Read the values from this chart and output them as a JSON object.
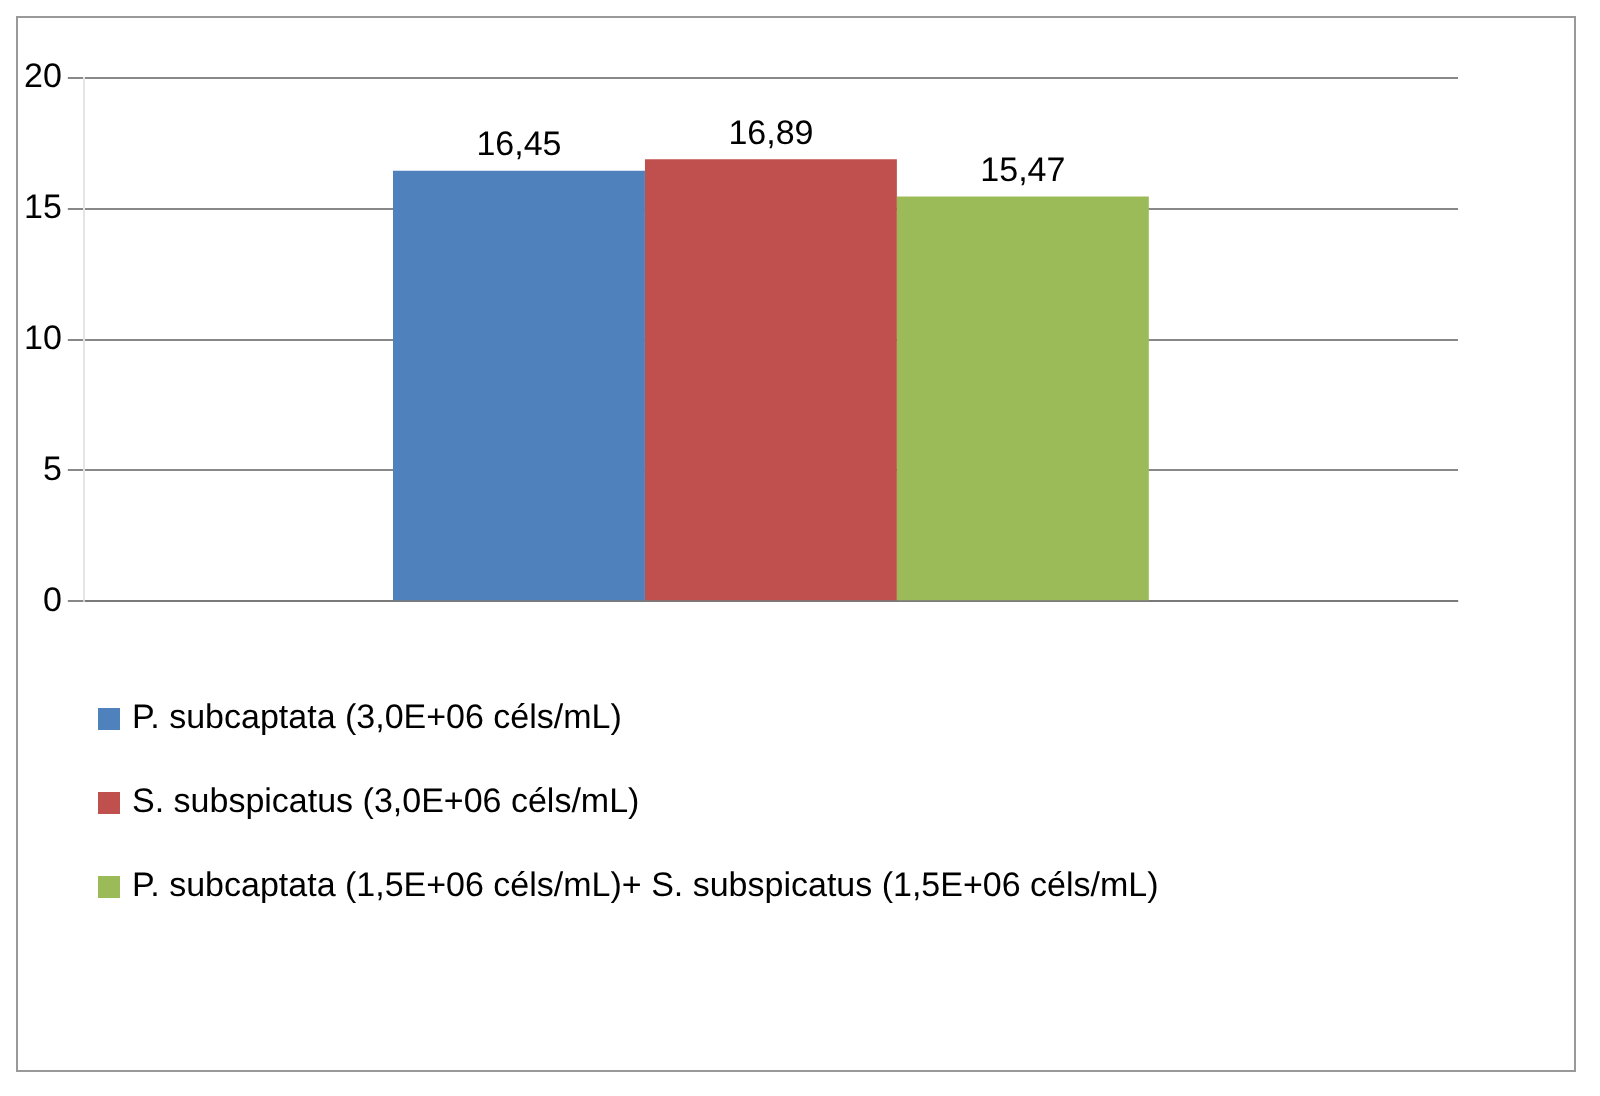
{
  "chart_data": {
    "type": "bar",
    "categories": [
      null
    ],
    "series": [
      {
        "name": "P. subcaptata (3,0E+06 céls/mL)",
        "color": "#4f81bd",
        "values": [
          16.45
        ],
        "value_labels": [
          "16,45"
        ]
      },
      {
        "name": "S. subspicatus (3,0E+06 céls/mL)",
        "color": "#c0504d",
        "values": [
          16.89
        ],
        "value_labels": [
          "16,89"
        ]
      },
      {
        "name": "P. subcaptata (1,5E+06 céls/mL)+ S. subspicatus (1,5E+06 céls/mL)",
        "color": "#9bbb59",
        "values": [
          15.47
        ],
        "value_labels": [
          "15,47"
        ]
      }
    ],
    "ylim": [
      0,
      20
    ],
    "yticks": [
      0,
      5,
      10,
      15,
      20
    ],
    "grid": "y",
    "legend": "bottom"
  }
}
